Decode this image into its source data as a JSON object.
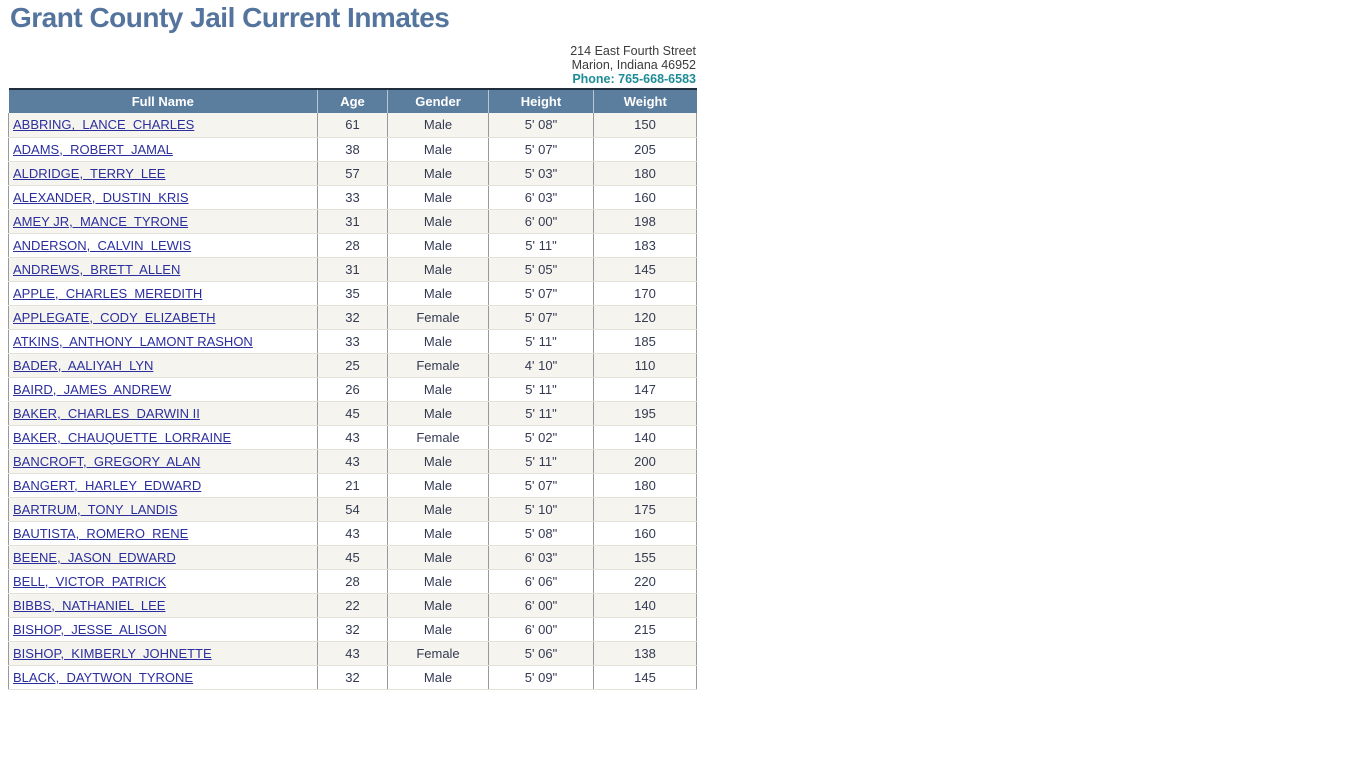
{
  "page": {
    "title": "Grant County Jail Current Inmates"
  },
  "address": {
    "line1": "214 East Fourth Street",
    "line2": "Marion, Indiana 46952",
    "phone": "Phone: 765-668-6583"
  },
  "colors": {
    "title_blue": "#54749e",
    "header_bg": "#5c7e9e",
    "header_top_border": "#1f2d3d",
    "phone_teal": "#1e8c96",
    "link_navy": "#2b2f9e",
    "stripe_row": "#f5f4ee"
  },
  "table": {
    "columns": [
      "Full Name",
      "Age",
      "Gender",
      "Height",
      "Weight"
    ],
    "rows": [
      {
        "name": "ABBRING,  LANCE  CHARLES",
        "age": "61",
        "gender": "Male",
        "height": "5' 08\"",
        "weight": "150"
      },
      {
        "name": "ADAMS,  ROBERT  JAMAL",
        "age": "38",
        "gender": "Male",
        "height": "5' 07\"",
        "weight": "205"
      },
      {
        "name": "ALDRIDGE,  TERRY  LEE",
        "age": "57",
        "gender": "Male",
        "height": "5' 03\"",
        "weight": "180"
      },
      {
        "name": "ALEXANDER,  DUSTIN  KRIS",
        "age": "33",
        "gender": "Male",
        "height": "6' 03\"",
        "weight": "160"
      },
      {
        "name": "AMEY JR,  MANCE  TYRONE",
        "age": "31",
        "gender": "Male",
        "height": "6' 00\"",
        "weight": "198"
      },
      {
        "name": "ANDERSON,  CALVIN  LEWIS",
        "age": "28",
        "gender": "Male",
        "height": "5' 11\"",
        "weight": "183"
      },
      {
        "name": "ANDREWS,  BRETT  ALLEN",
        "age": "31",
        "gender": "Male",
        "height": "5' 05\"",
        "weight": "145"
      },
      {
        "name": "APPLE,  CHARLES  MEREDITH",
        "age": "35",
        "gender": "Male",
        "height": "5' 07\"",
        "weight": "170"
      },
      {
        "name": "APPLEGATE,  CODY  ELIZABETH",
        "age": "32",
        "gender": "Female",
        "height": "5' 07\"",
        "weight": "120"
      },
      {
        "name": "ATKINS,  ANTHONY  LAMONT RASHON",
        "age": "33",
        "gender": "Male",
        "height": "5' 11\"",
        "weight": "185"
      },
      {
        "name": "BADER,  AALIYAH  LYN",
        "age": "25",
        "gender": "Female",
        "height": "4' 10\"",
        "weight": "110"
      },
      {
        "name": "BAIRD,  JAMES  ANDREW",
        "age": "26",
        "gender": "Male",
        "height": "5' 11\"",
        "weight": "147"
      },
      {
        "name": "BAKER,  CHARLES  DARWIN II",
        "age": "45",
        "gender": "Male",
        "height": "5' 11\"",
        "weight": "195"
      },
      {
        "name": "BAKER,  CHAUQUETTE  LORRAINE",
        "age": "43",
        "gender": "Female",
        "height": "5' 02\"",
        "weight": "140"
      },
      {
        "name": "BANCROFT,  GREGORY  ALAN",
        "age": "43",
        "gender": "Male",
        "height": "5' 11\"",
        "weight": "200"
      },
      {
        "name": "BANGERT,  HARLEY  EDWARD",
        "age": "21",
        "gender": "Male",
        "height": "5' 07\"",
        "weight": "180"
      },
      {
        "name": "BARTRUM,  TONY  LANDIS",
        "age": "54",
        "gender": "Male",
        "height": "5' 10\"",
        "weight": "175"
      },
      {
        "name": "BAUTISTA,  ROMERO  RENE",
        "age": "43",
        "gender": "Male",
        "height": "5' 08\"",
        "weight": "160"
      },
      {
        "name": "BEENE,  JASON  EDWARD",
        "age": "45",
        "gender": "Male",
        "height": "6' 03\"",
        "weight": "155"
      },
      {
        "name": "BELL,  VICTOR  PATRICK",
        "age": "28",
        "gender": "Male",
        "height": "6' 06\"",
        "weight": "220"
      },
      {
        "name": "BIBBS,  NATHANIEL  LEE",
        "age": "22",
        "gender": "Male",
        "height": "6' 00\"",
        "weight": "140"
      },
      {
        "name": "BISHOP,  JESSE  ALISON",
        "age": "32",
        "gender": "Male",
        "height": "6' 00\"",
        "weight": "215"
      },
      {
        "name": "BISHOP,  KIMBERLY  JOHNETTE",
        "age": "43",
        "gender": "Female",
        "height": "5' 06\"",
        "weight": "138"
      },
      {
        "name": "BLACK,  DAYTWON  TYRONE",
        "age": "32",
        "gender": "Male",
        "height": "5' 09\"",
        "weight": "145"
      }
    ]
  }
}
